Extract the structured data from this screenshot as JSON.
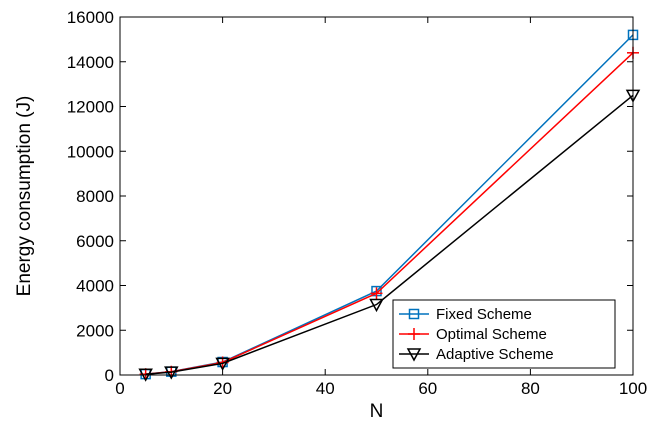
{
  "chart_data": {
    "type": "line",
    "title": "",
    "xlabel": "N",
    "ylabel": "Energy consumption (J)",
    "xlim": [
      0,
      100
    ],
    "ylim": [
      0,
      16000
    ],
    "xticks": [
      "0",
      "20",
      "40",
      "60",
      "80",
      "100"
    ],
    "yticks": [
      "0",
      "2000",
      "4000",
      "6000",
      "8000",
      "10000",
      "12000",
      "14000",
      "16000"
    ],
    "grid": false,
    "legend_position": "bottom-right",
    "x": [
      5,
      10,
      20,
      50,
      100
    ],
    "series": [
      {
        "name": "Fixed Scheme",
        "color": "#0072BD",
        "marker": "square",
        "values": [
          40,
          150,
          580,
          3750,
          15200
        ]
      },
      {
        "name": "Optimal Scheme",
        "color": "#FF0000",
        "marker": "plus",
        "values": [
          38,
          145,
          560,
          3650,
          14400
        ]
      },
      {
        "name": "Adaptive Scheme",
        "color": "#000000",
        "marker": "triangle-down",
        "values": [
          35,
          130,
          520,
          3150,
          12500
        ]
      }
    ]
  }
}
